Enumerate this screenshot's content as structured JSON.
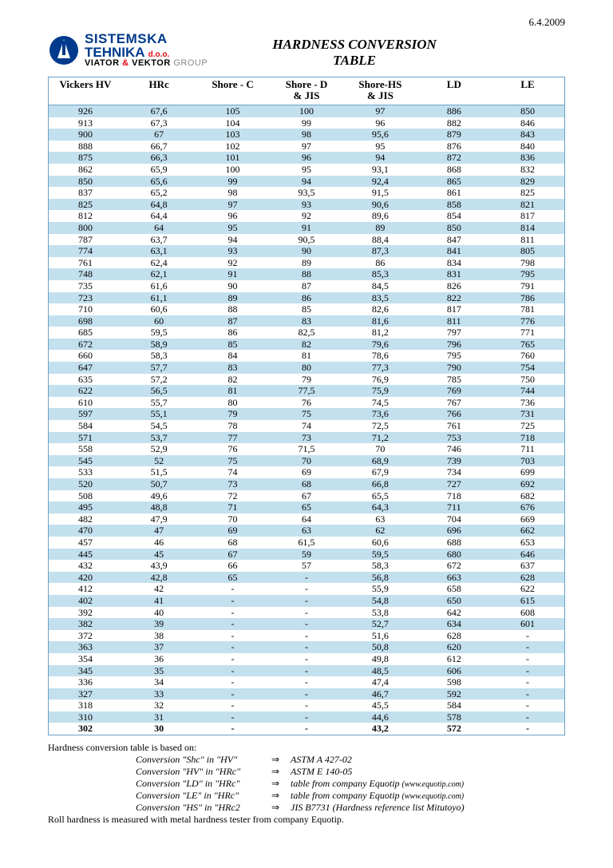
{
  "date": "6.4.2009",
  "logo": {
    "line1": "SISTEMSKA",
    "line2a": "TEHNIKA",
    "line2b": "d.o.o.",
    "line3a": "VIATOR",
    "line3amp": "&",
    "line3b": "VEKTOR",
    "line3c": "GROUP"
  },
  "title_l1": "HARDNESS CONVERSION",
  "title_l2": "TABLE",
  "columns": [
    "Vickers HV",
    "HRc",
    "Shore - C",
    "Shore - D\n& JIS",
    "Shore-HS\n& JIS",
    "LD",
    "LE"
  ],
  "colors": {
    "even": "#c3e0ee",
    "odd": "#ffffff",
    "last_bold_row": 48
  },
  "rows": [
    [
      "926",
      "67,6",
      "105",
      "100",
      "97",
      "886",
      "850"
    ],
    [
      "913",
      "67,3",
      "104",
      "99",
      "96",
      "882",
      "846"
    ],
    [
      "900",
      "67",
      "103",
      "98",
      "95,6",
      "879",
      "843"
    ],
    [
      "888",
      "66,7",
      "102",
      "97",
      "95",
      "876",
      "840"
    ],
    [
      "875",
      "66,3",
      "101",
      "96",
      "94",
      "872",
      "836"
    ],
    [
      "862",
      "65,9",
      "100",
      "95",
      "93,1",
      "868",
      "832"
    ],
    [
      "850",
      "65,6",
      "99",
      "94",
      "92,4",
      "865",
      "829"
    ],
    [
      "837",
      "65,2",
      "98",
      "93,5",
      "91,5",
      "861",
      "825"
    ],
    [
      "825",
      "64,8",
      "97",
      "93",
      "90,6",
      "858",
      "821"
    ],
    [
      "812",
      "64,4",
      "96",
      "92",
      "89,6",
      "854",
      "817"
    ],
    [
      "800",
      "64",
      "95",
      "91",
      "89",
      "850",
      "814"
    ],
    [
      "787",
      "63,7",
      "94",
      "90,5",
      "88,4",
      "847",
      "811"
    ],
    [
      "774",
      "63,1",
      "93",
      "90",
      "87,3",
      "841",
      "805"
    ],
    [
      "761",
      "62,4",
      "92",
      "89",
      "86",
      "834",
      "798"
    ],
    [
      "748",
      "62,1",
      "91",
      "88",
      "85,3",
      "831",
      "795"
    ],
    [
      "735",
      "61,6",
      "90",
      "87",
      "84,5",
      "826",
      "791"
    ],
    [
      "723",
      "61,1",
      "89",
      "86",
      "83,5",
      "822",
      "786"
    ],
    [
      "710",
      "60,6",
      "88",
      "85",
      "82,6",
      "817",
      "781"
    ],
    [
      "698",
      "60",
      "87",
      "83",
      "81,6",
      "811",
      "776"
    ],
    [
      "685",
      "59,5",
      "86",
      "82,5",
      "81,2",
      "797",
      "771"
    ],
    [
      "672",
      "58,9",
      "85",
      "82",
      "79,6",
      "796",
      "765"
    ],
    [
      "660",
      "58,3",
      "84",
      "81",
      "78,6",
      "795",
      "760"
    ],
    [
      "647",
      "57,7",
      "83",
      "80",
      "77,3",
      "790",
      "754"
    ],
    [
      "635",
      "57,2",
      "82",
      "79",
      "76,9",
      "785",
      "750"
    ],
    [
      "622",
      "56,5",
      "81",
      "77,5",
      "75,9",
      "769",
      "744"
    ],
    [
      "610",
      "55,7",
      "80",
      "76",
      "74,5",
      "767",
      "736"
    ],
    [
      "597",
      "55,1",
      "79",
      "75",
      "73,6",
      "766",
      "731"
    ],
    [
      "584",
      "54,5",
      "78",
      "74",
      "72,5",
      "761",
      "725"
    ],
    [
      "571",
      "53,7",
      "77",
      "73",
      "71,2",
      "753",
      "718"
    ],
    [
      "558",
      "52,9",
      "76",
      "71,5",
      "70",
      "746",
      "711"
    ],
    [
      "545",
      "52",
      "75",
      "70",
      "68,9",
      "739",
      "703"
    ],
    [
      "533",
      "51,5",
      "74",
      "69",
      "67,9",
      "734",
      "699"
    ],
    [
      "520",
      "50,7",
      "73",
      "68",
      "66,8",
      "727",
      "692"
    ],
    [
      "508",
      "49,6",
      "72",
      "67",
      "65,5",
      "718",
      "682"
    ],
    [
      "495",
      "48,8",
      "71",
      "65",
      "64,3",
      "711",
      "676"
    ],
    [
      "482",
      "47,9",
      "70",
      "64",
      "63",
      "704",
      "669"
    ],
    [
      "470",
      "47",
      "69",
      "63",
      "62",
      "696",
      "662"
    ],
    [
      "457",
      "46",
      "68",
      "61,5",
      "60,6",
      "688",
      "653"
    ],
    [
      "445",
      "45",
      "67",
      "59",
      "59,5",
      "680",
      "646"
    ],
    [
      "432",
      "43,9",
      "66",
      "57",
      "58,3",
      "672",
      "637"
    ],
    [
      "420",
      "42,8",
      "65",
      "-",
      "56,8",
      "663",
      "628"
    ],
    [
      "412",
      "42",
      "-",
      "-",
      "55,9",
      "658",
      "622"
    ],
    [
      "402",
      "41",
      "-",
      "-",
      "54,8",
      "650",
      "615"
    ],
    [
      "392",
      "40",
      "-",
      "-",
      "53,8",
      "642",
      "608"
    ],
    [
      "382",
      "39",
      "-",
      "-",
      "52,7",
      "634",
      "601"
    ],
    [
      "372",
      "38",
      "-",
      "-",
      "51,6",
      "628",
      "-"
    ],
    [
      "363",
      "37",
      "-",
      "-",
      "50,8",
      "620",
      "-"
    ],
    [
      "354",
      "36",
      "-",
      "-",
      "49,8",
      "612",
      "-"
    ],
    [
      "345",
      "35",
      "-",
      "-",
      "48,5",
      "606",
      "-"
    ],
    [
      "336",
      "34",
      "-",
      "-",
      "47,4",
      "598",
      "-"
    ],
    [
      "327",
      "33",
      "-",
      "-",
      "46,7",
      "592",
      "-"
    ],
    [
      "318",
      "32",
      "-",
      "-",
      "45,5",
      "584",
      "-"
    ],
    [
      "310",
      "31",
      "-",
      "-",
      "44,6",
      "578",
      "-"
    ],
    [
      "302",
      "30",
      "-",
      "-",
      "43,2",
      "572",
      "-"
    ]
  ],
  "footer": {
    "intro": "Hardness conversion table is based on:",
    "refs": [
      {
        "l": "Conversion \"Shc\" in \"HV\"",
        "r": "ASTM A 427-02"
      },
      {
        "l": "Conversion \"HV\" in \"HRc\"",
        "r": "ASTM E 140-05"
      },
      {
        "l": "Conversion \"LD\" in \"HRc\"",
        "r": "table from company Equotip ",
        "s": "(www.equotip.com)"
      },
      {
        "l": "Conversion \"LE\" in \"HRc\"",
        "r": "table from company Equotip ",
        "s": "(www.equotip.com)"
      },
      {
        "l": "Conversion \"HS\" in \"HRc2",
        "r": "JIS B7731 (Hardness reference list Mitutoyo)"
      }
    ],
    "outro": "Roll hardness is measured with metal hardness tester from company Equotip."
  }
}
